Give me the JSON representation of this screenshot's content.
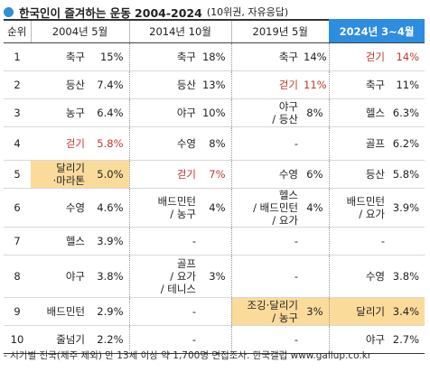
{
  "title": {
    "main": "한국인이 즐겨하는 운동 2004-2024",
    "sub": "(10위권, 자유응답)"
  },
  "table": {
    "rank_header": "순위",
    "columns": [
      "2004년 5월",
      "2014년 10월",
      "2019년 5월",
      "2024년 3~4월"
    ],
    "rows": [
      {
        "rank": "1",
        "cells": [
          {
            "name": "축구",
            "value": "15%"
          },
          {
            "name": "축구",
            "value": "18%"
          },
          {
            "name": "축구",
            "value": "14%"
          },
          {
            "name": "걷기",
            "value": "14%"
          }
        ]
      },
      {
        "rank": "2",
        "cells": [
          {
            "name": "등산",
            "value": "7.4%"
          },
          {
            "name": "등산",
            "value": "13%"
          },
          {
            "name": "걷기",
            "value": "11%"
          },
          {
            "name": "축구",
            "value": "11%"
          }
        ]
      },
      {
        "rank": "3",
        "cells": [
          {
            "name": "농구",
            "value": "6.4%"
          },
          {
            "name": "야구",
            "value": "10%"
          },
          {
            "name": "야구\n/ 등산",
            "value": "8%"
          },
          {
            "name": "헬스",
            "value": "6.3%"
          }
        ]
      },
      {
        "rank": "4",
        "cells": [
          {
            "name": "걷기",
            "value": "5.8%"
          },
          {
            "name": "수영",
            "value": "8%"
          },
          {
            "name": "-",
            "value": ""
          },
          {
            "name": "골프",
            "value": "6.2%"
          }
        ]
      },
      {
        "rank": "5",
        "cells": [
          {
            "name": "달리기\n·마라톤",
            "value": "5.0%"
          },
          {
            "name": "걷기",
            "value": "7%"
          },
          {
            "name": "수영",
            "value": "6%"
          },
          {
            "name": "등산",
            "value": "5.8%"
          }
        ]
      },
      {
        "rank": "6",
        "cells": [
          {
            "name": "수영",
            "value": "4.6%"
          },
          {
            "name": "배드민턴\n/ 농구",
            "value": "4%"
          },
          {
            "name": "헬스\n/ 배드민턴\n/ 요가",
            "value": "4%"
          },
          {
            "name": "배드민턴\n/ 요가",
            "value": "3.9%"
          }
        ]
      },
      {
        "rank": "7",
        "cells": [
          {
            "name": "헬스",
            "value": "3.9%"
          },
          {
            "name": "-",
            "value": ""
          },
          {
            "name": "-",
            "value": ""
          },
          {
            "name": "-",
            "value": ""
          }
        ]
      },
      {
        "rank": "8",
        "cells": [
          {
            "name": "야구",
            "value": "3.8%"
          },
          {
            "name": "골프\n/ 요가\n/ 테니스",
            "value": "3%"
          },
          {
            "name": "-",
            "value": ""
          },
          {
            "name": "수영",
            "value": "3.8%"
          }
        ]
      },
      {
        "rank": "9",
        "cells": [
          {
            "name": "배드민턴",
            "value": "2.9%"
          },
          {
            "name": "-",
            "value": ""
          },
          {
            "name": "조깅·달리기\n/ 농구",
            "value": "3%"
          },
          {
            "name": "달리기",
            "value": "3.4%"
          }
        ]
      },
      {
        "rank": "10",
        "cells": [
          {
            "name": "줄넘기",
            "value": "2.2%"
          },
          {
            "name": "-",
            "value": ""
          },
          {
            "name": "-",
            "value": ""
          },
          {
            "name": "야구",
            "value": "2.7%"
          }
        ]
      }
    ]
  },
  "footnote": "- 시기별 전국(제주 제외) 만 13세 이상 약 1,700명 면접조사. 한국갤럽 www.gallup.co.kr",
  "colors": {
    "header_highlight": "#2d8de0",
    "walking_text": "#c0392b",
    "running_highlight": "#fbdb9a",
    "title_dot": "#2f8fd8"
  },
  "chart_data": {
    "type": "table",
    "title": "한국인이 즐겨하는 운동 2004-2024",
    "subtitle": "(10위권, 자유응답)",
    "columns": [
      "2004년 5월",
      "2014년 10월",
      "2019년 5월",
      "2024년 3~4월"
    ],
    "rank_header": "순위",
    "ranks": [
      1,
      2,
      3,
      4,
      5,
      6,
      7,
      8,
      9,
      10
    ],
    "series": [
      {
        "name": "2004년 5월",
        "items": [
          [
            "축구",
            15
          ],
          [
            "등산",
            7.4
          ],
          [
            "농구",
            6.4
          ],
          [
            "걷기",
            5.8
          ],
          [
            "달리기·마라톤",
            5.0
          ],
          [
            "수영",
            4.6
          ],
          [
            "헬스",
            3.9
          ],
          [
            "야구",
            3.8
          ],
          [
            "배드민턴",
            2.9
          ],
          [
            "줄넘기",
            2.2
          ]
        ]
      },
      {
        "name": "2014년 10월",
        "items": [
          [
            "축구",
            18
          ],
          [
            "등산",
            13
          ],
          [
            "야구",
            10
          ],
          [
            "수영",
            8
          ],
          [
            "걷기",
            7
          ],
          [
            "배드민턴 / 농구",
            4
          ],
          [
            "-",
            null
          ],
          [
            "골프 / 요가 / 테니스",
            3
          ],
          [
            "-",
            null
          ],
          [
            "-",
            null
          ]
        ]
      },
      {
        "name": "2019년 5월",
        "items": [
          [
            "축구",
            14
          ],
          [
            "걷기",
            11
          ],
          [
            "야구 / 등산",
            8
          ],
          [
            "-",
            null
          ],
          [
            "수영",
            6
          ],
          [
            "헬스 / 배드민턴 / 요가",
            4
          ],
          [
            "-",
            null
          ],
          [
            "-",
            null
          ],
          [
            "조깅·달리기 / 농구",
            3
          ],
          [
            "-",
            null
          ]
        ]
      },
      {
        "name": "2024년 3~4월",
        "items": [
          [
            "걷기",
            14
          ],
          [
            "축구",
            11
          ],
          [
            "헬스",
            6.3
          ],
          [
            "골프",
            6.2
          ],
          [
            "등산",
            5.8
          ],
          [
            "배드민턴 / 요가",
            3.9
          ],
          [
            "-",
            null
          ],
          [
            "수영",
            3.8
          ],
          [
            "달리기",
            3.4
          ],
          [
            "야구",
            2.7
          ]
        ]
      }
    ],
    "unit": "%"
  }
}
